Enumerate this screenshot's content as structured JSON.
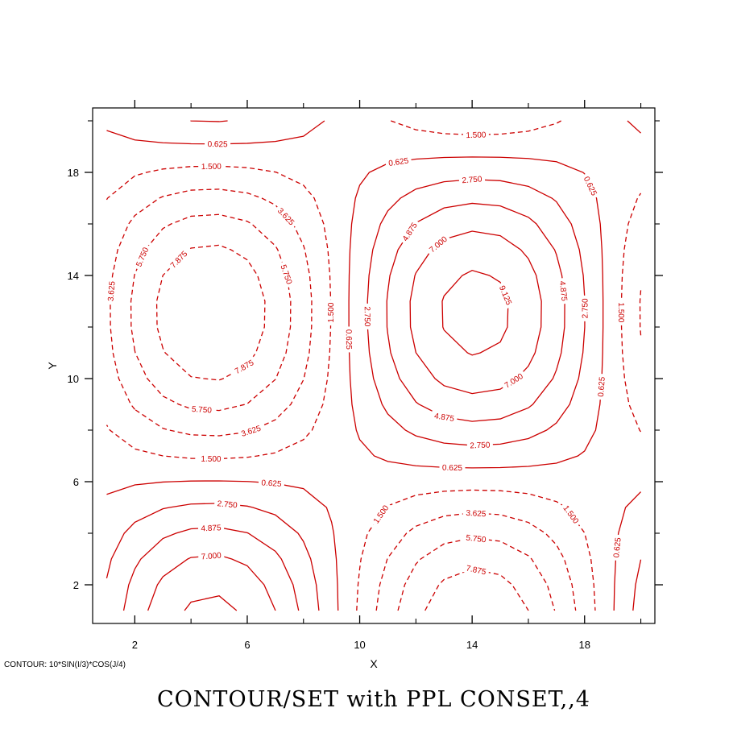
{
  "chart_data": {
    "type": "contour",
    "title": "CONTOUR/SET with PPL CONSET,,4",
    "footnote": "CONTOUR: 10*SIN(I/3)*COS(J/4)",
    "xlabel": "X",
    "ylabel": "Y",
    "xlim": [
      0.5,
      20.5
    ],
    "ylim": [
      0.5,
      20.5
    ],
    "x_major_ticks": [
      2,
      6,
      10,
      14,
      18
    ],
    "x_minor_ticks": [
      4,
      8,
      12,
      16,
      20
    ],
    "y_major_ticks": [
      2,
      6,
      10,
      14,
      18
    ],
    "y_minor_ticks": [
      4,
      8,
      12,
      16,
      20
    ],
    "x_tick_labels": [
      "2",
      "6",
      "10",
      "14",
      "18"
    ],
    "y_tick_labels": [
      "2",
      "6",
      "10",
      "14",
      "18"
    ],
    "field": {
      "expression": "10*SIN(I/3)*COS(J/4)",
      "i_range": [
        1,
        20
      ],
      "j_range": [
        1,
        20
      ]
    },
    "levels": [
      -7.875,
      -5.75,
      -3.625,
      -1.5,
      0.625,
      2.75,
      4.875,
      7.0,
      9.125
    ],
    "level_labels": [
      "7.875",
      "5.750",
      "3.625",
      "1.500",
      "0.625",
      "2.750",
      "4.875",
      "7.000",
      "9.125"
    ],
    "negative_style": "dashed",
    "positive_style": "solid",
    "line_color": "#cc0000",
    "grid": false
  }
}
